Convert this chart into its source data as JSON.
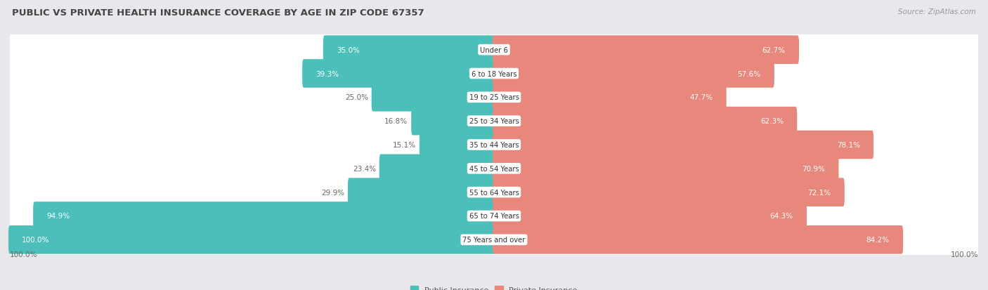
{
  "title": "PUBLIC VS PRIVATE HEALTH INSURANCE COVERAGE BY AGE IN ZIP CODE 67357",
  "source": "Source: ZipAtlas.com",
  "categories": [
    "Under 6",
    "6 to 18 Years",
    "19 to 25 Years",
    "25 to 34 Years",
    "35 to 44 Years",
    "45 to 54 Years",
    "55 to 64 Years",
    "65 to 74 Years",
    "75 Years and over"
  ],
  "public_values": [
    35.0,
    39.3,
    25.0,
    16.8,
    15.1,
    23.4,
    29.9,
    94.9,
    100.0
  ],
  "private_values": [
    62.7,
    57.6,
    47.7,
    62.3,
    78.1,
    70.9,
    72.1,
    64.3,
    84.2
  ],
  "public_color": "#4dbfbb",
  "private_color": "#e8877b",
  "bg_color": "#e8e8ec",
  "row_bg_color": "#f2f2f5",
  "title_color": "#444444",
  "label_color": "#666666",
  "legend_public": "Public Insurance",
  "legend_private": "Private Insurance",
  "max_val": 100.0,
  "bottom_label": "100.0%"
}
